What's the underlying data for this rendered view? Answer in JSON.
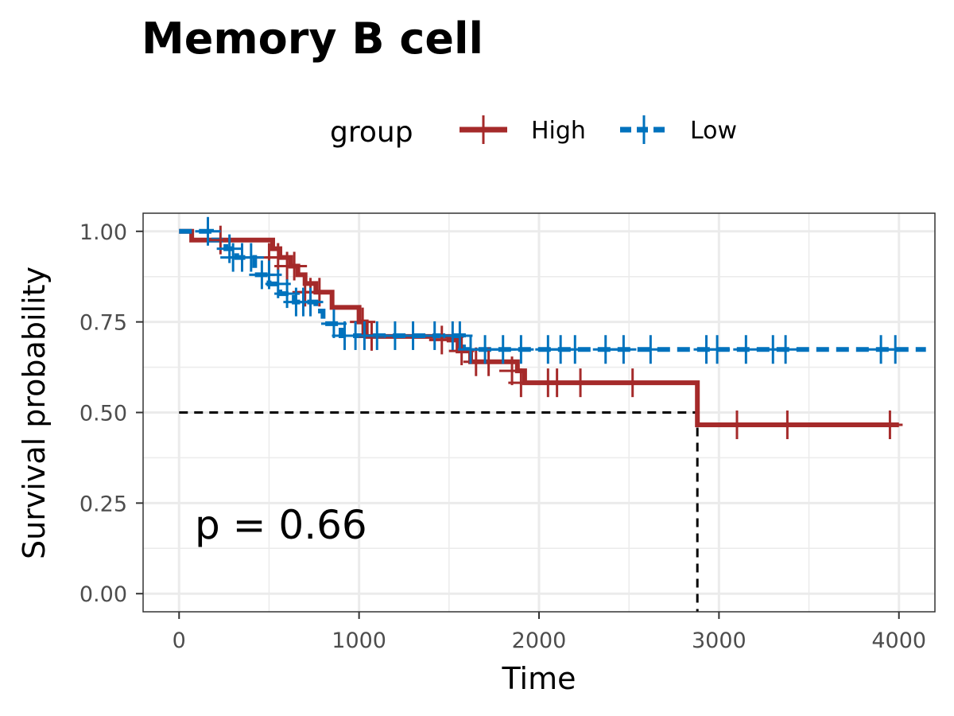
{
  "chart_data": {
    "type": "line",
    "subtype": "kaplan-meier",
    "title": "Memory B cell",
    "xlabel": "Time",
    "ylabel": "Survival probability",
    "xlim": [
      -200,
      4200
    ],
    "ylim": [
      -0.05,
      1.05
    ],
    "xticks": [
      0,
      1000,
      2000,
      3000,
      4000
    ],
    "xtick_labels": [
      "0",
      "1000",
      "2000",
      "3000",
      "4000"
    ],
    "yticks": [
      0,
      0.25,
      0.5,
      0.75,
      1.0
    ],
    "ytick_labels": [
      "0.00",
      "0.25",
      "0.50",
      "0.75",
      "1.00"
    ],
    "grid": true,
    "legend": {
      "title": "group",
      "position": "top",
      "entries": [
        "High",
        "Low"
      ]
    },
    "annotation": "p = 0.66",
    "median_line": {
      "y": 0.5,
      "x": 2880
    },
    "series": [
      {
        "name": "High",
        "color": "#a52a2a",
        "style": "solid",
        "steps": [
          [
            0,
            1.0
          ],
          [
            70,
            0.976
          ],
          [
            520,
            0.952
          ],
          [
            560,
            0.928
          ],
          [
            620,
            0.904
          ],
          [
            660,
            0.88
          ],
          [
            700,
            0.856
          ],
          [
            760,
            0.832
          ],
          [
            850,
            0.79
          ],
          [
            1000,
            0.75
          ],
          [
            1040,
            0.71
          ],
          [
            1500,
            0.7
          ],
          [
            1550,
            0.67
          ],
          [
            1620,
            0.64
          ],
          [
            1880,
            0.615
          ],
          [
            1920,
            0.582
          ],
          [
            2880,
            0.466
          ],
          [
            4000,
            0.466
          ]
        ],
        "censors": [
          [
            230,
            0.976
          ],
          [
            500,
            0.928
          ],
          [
            550,
            0.928
          ],
          [
            600,
            0.904
          ],
          [
            640,
            0.904
          ],
          [
            700,
            0.832
          ],
          [
            730,
            0.832
          ],
          [
            780,
            0.832
          ],
          [
            1020,
            0.75
          ],
          [
            1070,
            0.71
          ],
          [
            1460,
            0.7
          ],
          [
            1570,
            0.67
          ],
          [
            1650,
            0.64
          ],
          [
            1720,
            0.64
          ],
          [
            1850,
            0.615
          ],
          [
            1900,
            0.582
          ],
          [
            2050,
            0.582
          ],
          [
            2100,
            0.582
          ],
          [
            2230,
            0.582
          ],
          [
            2520,
            0.582
          ],
          [
            3100,
            0.466
          ],
          [
            3380,
            0.466
          ],
          [
            3950,
            0.466
          ]
        ]
      },
      {
        "name": "Low",
        "color": "#0072bd",
        "style": "dashed",
        "steps": [
          [
            0,
            1.0
          ],
          [
            180,
            0.976
          ],
          [
            260,
            0.952
          ],
          [
            320,
            0.928
          ],
          [
            420,
            0.88
          ],
          [
            500,
            0.855
          ],
          [
            560,
            0.828
          ],
          [
            640,
            0.805
          ],
          [
            760,
            0.78
          ],
          [
            800,
            0.745
          ],
          [
            900,
            0.712
          ],
          [
            1580,
            0.674
          ],
          [
            4150,
            0.674
          ]
        ],
        "censors": [
          [
            160,
            1.0
          ],
          [
            280,
            0.952
          ],
          [
            300,
            0.928
          ],
          [
            350,
            0.928
          ],
          [
            400,
            0.928
          ],
          [
            460,
            0.88
          ],
          [
            500,
            0.88
          ],
          [
            550,
            0.855
          ],
          [
            600,
            0.828
          ],
          [
            650,
            0.805
          ],
          [
            690,
            0.805
          ],
          [
            730,
            0.805
          ],
          [
            860,
            0.745
          ],
          [
            920,
            0.712
          ],
          [
            980,
            0.712
          ],
          [
            1030,
            0.712
          ],
          [
            1100,
            0.712
          ],
          [
            1200,
            0.712
          ],
          [
            1300,
            0.712
          ],
          [
            1420,
            0.712
          ],
          [
            1520,
            0.712
          ],
          [
            1560,
            0.712
          ],
          [
            1620,
            0.674
          ],
          [
            1700,
            0.674
          ],
          [
            1800,
            0.674
          ],
          [
            1900,
            0.674
          ],
          [
            2050,
            0.674
          ],
          [
            2120,
            0.674
          ],
          [
            2200,
            0.674
          ],
          [
            2370,
            0.674
          ],
          [
            2470,
            0.674
          ],
          [
            2620,
            0.674
          ],
          [
            2930,
            0.674
          ],
          [
            2990,
            0.674
          ],
          [
            3150,
            0.674
          ],
          [
            3300,
            0.674
          ],
          [
            3370,
            0.674
          ],
          [
            3900,
            0.674
          ],
          [
            3980,
            0.674
          ]
        ]
      }
    ]
  }
}
